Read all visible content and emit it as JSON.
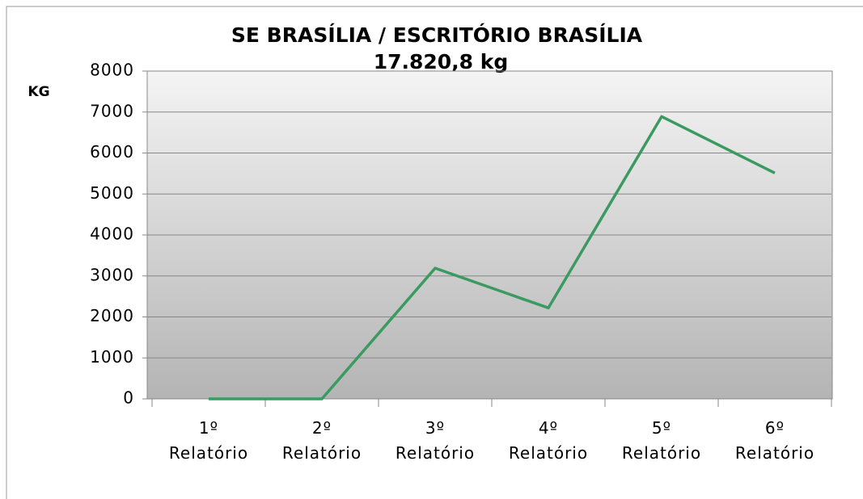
{
  "chart_data": {
    "type": "line",
    "title": "SE BRASÍLIA / ESCRITÓRIO BRASÍLIA",
    "subtitle": "17.820,8 kg",
    "y_label": "KG",
    "categories": [
      "1º Relatório",
      "2º Relatório",
      "3º Relatório",
      "4º Relatório",
      "5º Relatório",
      "6º Relatório"
    ],
    "series": [
      {
        "name": "KG",
        "color": "#3a9a60",
        "values": [
          0,
          0,
          3190,
          2220,
          6890,
          5510
        ]
      }
    ],
    "ylim": [
      0,
      8000
    ],
    "yticks": [
      0,
      1000,
      2000,
      3000,
      4000,
      5000,
      6000,
      7000,
      8000
    ],
    "grid": true
  }
}
